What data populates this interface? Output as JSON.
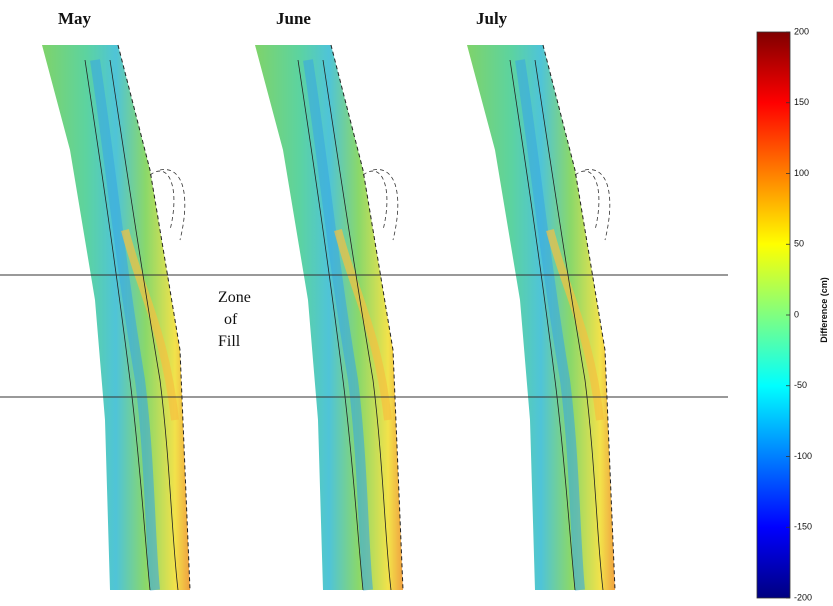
{
  "panels": [
    {
      "title": "May"
    },
    {
      "title": "June"
    },
    {
      "title": "July"
    }
  ],
  "annotation": {
    "lines": [
      "Zone",
      "of",
      "Fill"
    ]
  },
  "colorbar": {
    "label": "Difference (cm)",
    "lim": [
      -200,
      200
    ],
    "ticks": [
      200,
      150,
      100,
      50,
      0,
      -50,
      -100,
      -150,
      -200
    ]
  }
}
